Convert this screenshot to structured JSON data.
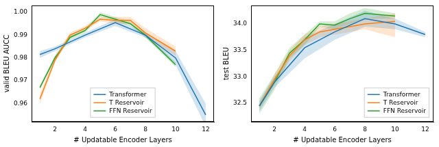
{
  "chart_data": [
    {
      "type": "line",
      "legend": "lower center",
      "grid": false,
      "x_label": "# Updatable Encoder Layers",
      "y_label": "valid BLEU AUCC",
      "xlim": [
        0.45,
        12.55
      ],
      "xticks": [
        2,
        4,
        6,
        8,
        10,
        12
      ],
      "ylim": [
        0.952,
        1.003
      ],
      "yticks": [
        0.96,
        0.97,
        0.98,
        0.99,
        {
          "value": 1,
          "label": "1.00"
        }
      ],
      "series": [
        {
          "name": "Transformer",
          "color": "#1f77b4",
          "x": [
            1,
            2,
            4,
            6,
            8,
            10,
            12
          ],
          "values": [
            0.9815,
            0.984,
            0.99,
            0.9955,
            0.99,
            0.98,
            0.955
          ],
          "lower": [
            0.98,
            0.983,
            0.989,
            0.994,
            0.989,
            0.977,
            0.95
          ],
          "upper": [
            0.983,
            0.985,
            0.991,
            0.997,
            0.991,
            0.983,
            0.96
          ]
        },
        {
          "name": "T Reservoir",
          "color": "#ff7f0e",
          "x": [
            1,
            2,
            3,
            4,
            5,
            6,
            7,
            8,
            10
          ],
          "values": [
            0.962,
            0.979,
            0.99,
            0.993,
            0.997,
            0.9965,
            0.9965,
            0.991,
            0.983
          ],
          "lower": [
            0.96,
            0.978,
            0.989,
            0.992,
            0.996,
            0.995,
            0.995,
            0.989,
            0.981
          ],
          "upper": [
            0.964,
            0.981,
            0.991,
            0.994,
            0.998,
            0.998,
            0.998,
            0.993,
            0.985
          ]
        },
        {
          "name": "FFN Reservoir",
          "color": "#2ca02c",
          "x": [
            1,
            2,
            3,
            4,
            5,
            6,
            7,
            8,
            10
          ],
          "values": [
            0.967,
            0.98,
            0.989,
            0.992,
            0.999,
            0.997,
            0.995,
            0.99,
            0.977
          ],
          "lower": [
            0.966,
            0.979,
            0.988,
            0.991,
            0.998,
            0.996,
            0.994,
            0.989,
            0.976
          ],
          "upper": [
            0.968,
            0.981,
            0.99,
            0.993,
            1.0,
            0.998,
            0.996,
            0.991,
            0.978
          ]
        }
      ]
    },
    {
      "type": "line",
      "legend": "lower right",
      "grid": false,
      "x_label": "# Updatable Encoder Layers",
      "y_label": "test BLEU",
      "xlim": [
        0.45,
        12.55
      ],
      "xticks": [
        2,
        4,
        6,
        8,
        10,
        12
      ],
      "ylim": [
        32.15,
        34.35
      ],
      "yticks": [
        32.5,
        {
          "value": 33,
          "label": "33.0"
        },
        33.5,
        {
          "value": 34,
          "label": "34.0"
        }
      ],
      "series": [
        {
          "name": "Transformer",
          "color": "#1f77b4",
          "x": [
            1,
            2,
            4,
            6,
            8,
            10,
            12
          ],
          "values": [
            32.45,
            32.9,
            33.55,
            33.85,
            34.1,
            34.0,
            33.8
          ],
          "lower": [
            32.35,
            32.8,
            33.35,
            33.7,
            33.95,
            33.9,
            33.75
          ],
          "upper": [
            32.55,
            33.0,
            33.75,
            34.0,
            34.25,
            34.1,
            33.85
          ]
        },
        {
          "name": "T Reservoir",
          "color": "#ff7f0e",
          "x": [
            1,
            2,
            3,
            4,
            5,
            6,
            7,
            8,
            10
          ],
          "values": [
            32.45,
            32.95,
            33.4,
            33.7,
            33.85,
            33.9,
            33.95,
            34.0,
            34.05
          ],
          "lower": [
            32.4,
            32.85,
            33.3,
            33.6,
            33.75,
            33.8,
            33.85,
            33.9,
            33.75
          ],
          "upper": [
            32.5,
            33.05,
            33.5,
            33.8,
            33.95,
            34.0,
            34.05,
            34.1,
            34.2
          ]
        },
        {
          "name": "FFN Reservoir",
          "color": "#2ca02c",
          "x": [
            1,
            2,
            3,
            4,
            5,
            6,
            7,
            8,
            10
          ],
          "values": [
            32.45,
            32.9,
            33.45,
            33.7,
            34.0,
            33.98,
            34.1,
            34.2,
            34.15
          ],
          "lower": [
            32.3,
            32.75,
            33.35,
            33.6,
            33.95,
            33.9,
            34.0,
            34.1,
            34.1
          ],
          "upper": [
            32.6,
            33.05,
            33.55,
            33.8,
            34.05,
            34.05,
            34.2,
            34.3,
            34.2
          ]
        }
      ]
    }
  ]
}
